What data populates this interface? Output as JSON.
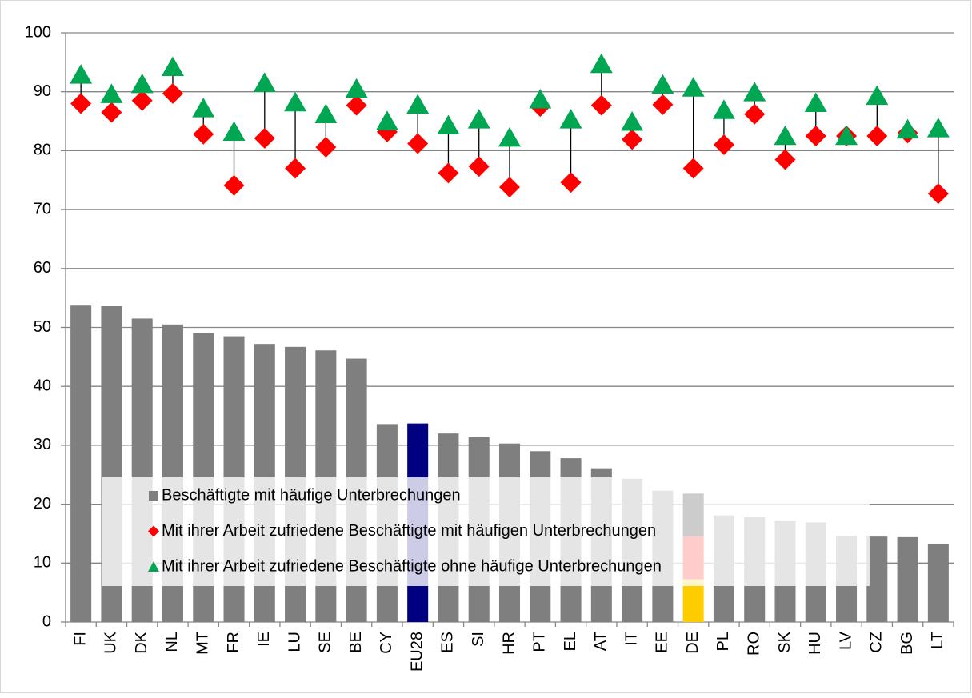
{
  "chart_data": {
    "type": "bar",
    "categories": [
      "FI",
      "UK",
      "DK",
      "NL",
      "MT",
      "FR",
      "IE",
      "LU",
      "SE",
      "BE",
      "CY",
      "EU28",
      "ES",
      "SI",
      "HR",
      "PT",
      "EL",
      "AT",
      "IT",
      "EE",
      "DE",
      "PL",
      "RO",
      "SK",
      "HU",
      "LV",
      "CZ",
      "BG",
      "LT"
    ],
    "series": [
      {
        "name": "Beschäftigte mit häufige Unterbrechungen",
        "marker": "bar",
        "color": "#7f7f7f",
        "bar_colors": [
          "#7f7f7f",
          "#7f7f7f",
          "#7f7f7f",
          "#7f7f7f",
          "#7f7f7f",
          "#7f7f7f",
          "#7f7f7f",
          "#7f7f7f",
          "#7f7f7f",
          "#7f7f7f",
          "#7f7f7f",
          "#000080",
          "#7f7f7f",
          "#7f7f7f",
          "#7f7f7f",
          "#7f7f7f",
          "#7f7f7f",
          "#7f7f7f",
          "#7f7f7f",
          "#7f7f7f",
          [
            "#ffcc00",
            "#ff0000",
            "#000000"
          ],
          "#7f7f7f",
          "#7f7f7f",
          "#7f7f7f",
          "#7f7f7f",
          "#7f7f7f",
          "#7f7f7f",
          "#7f7f7f",
          "#7f7f7f"
        ],
        "values": [
          53.7,
          53.6,
          51.5,
          50.5,
          49.1,
          48.5,
          47.2,
          46.7,
          46.1,
          44.7,
          33.6,
          33.7,
          32.0,
          31.4,
          30.3,
          29.0,
          27.8,
          26.1,
          24.3,
          22.3,
          21.8,
          18.1,
          17.8,
          17.2,
          16.9,
          14.6,
          14.5,
          14.4,
          13.3
        ]
      },
      {
        "name": "Mit ihrer Arbeit zufriedene Beschäftigte mit häufigen Unterbrechungen",
        "marker": "diamond",
        "color": "#ff0000",
        "values": [
          88.0,
          86.5,
          88.5,
          89.7,
          82.8,
          74.1,
          82.1,
          77.0,
          80.6,
          87.7,
          83.2,
          81.2,
          76.2,
          77.3,
          73.8,
          87.5,
          74.6,
          87.7,
          81.9,
          87.8,
          77.0,
          81.0,
          86.2,
          78.5,
          82.5,
          82.5,
          82.5,
          83.0,
          72.7
        ]
      },
      {
        "name": "Mit ihrer Arbeit zufriedene Beschäftigte ohne häufige Unterbrechungen",
        "marker": "triangle",
        "color": "#00a651",
        "values": [
          92.8,
          89.5,
          91.2,
          94.1,
          87.1,
          83.1,
          91.4,
          88.1,
          86.1,
          90.4,
          84.9,
          87.7,
          84.2,
          85.2,
          82.1,
          88.6,
          85.2,
          94.6,
          84.8,
          91.1,
          90.6,
          86.8,
          89.8,
          82.4,
          88.0,
          82.4,
          89.2,
          83.5,
          83.7
        ]
      }
    ],
    "ylim": [
      0,
      100
    ],
    "yticks": [
      0,
      10,
      20,
      30,
      40,
      50,
      60,
      70,
      80,
      90,
      100
    ],
    "grid": true
  }
}
